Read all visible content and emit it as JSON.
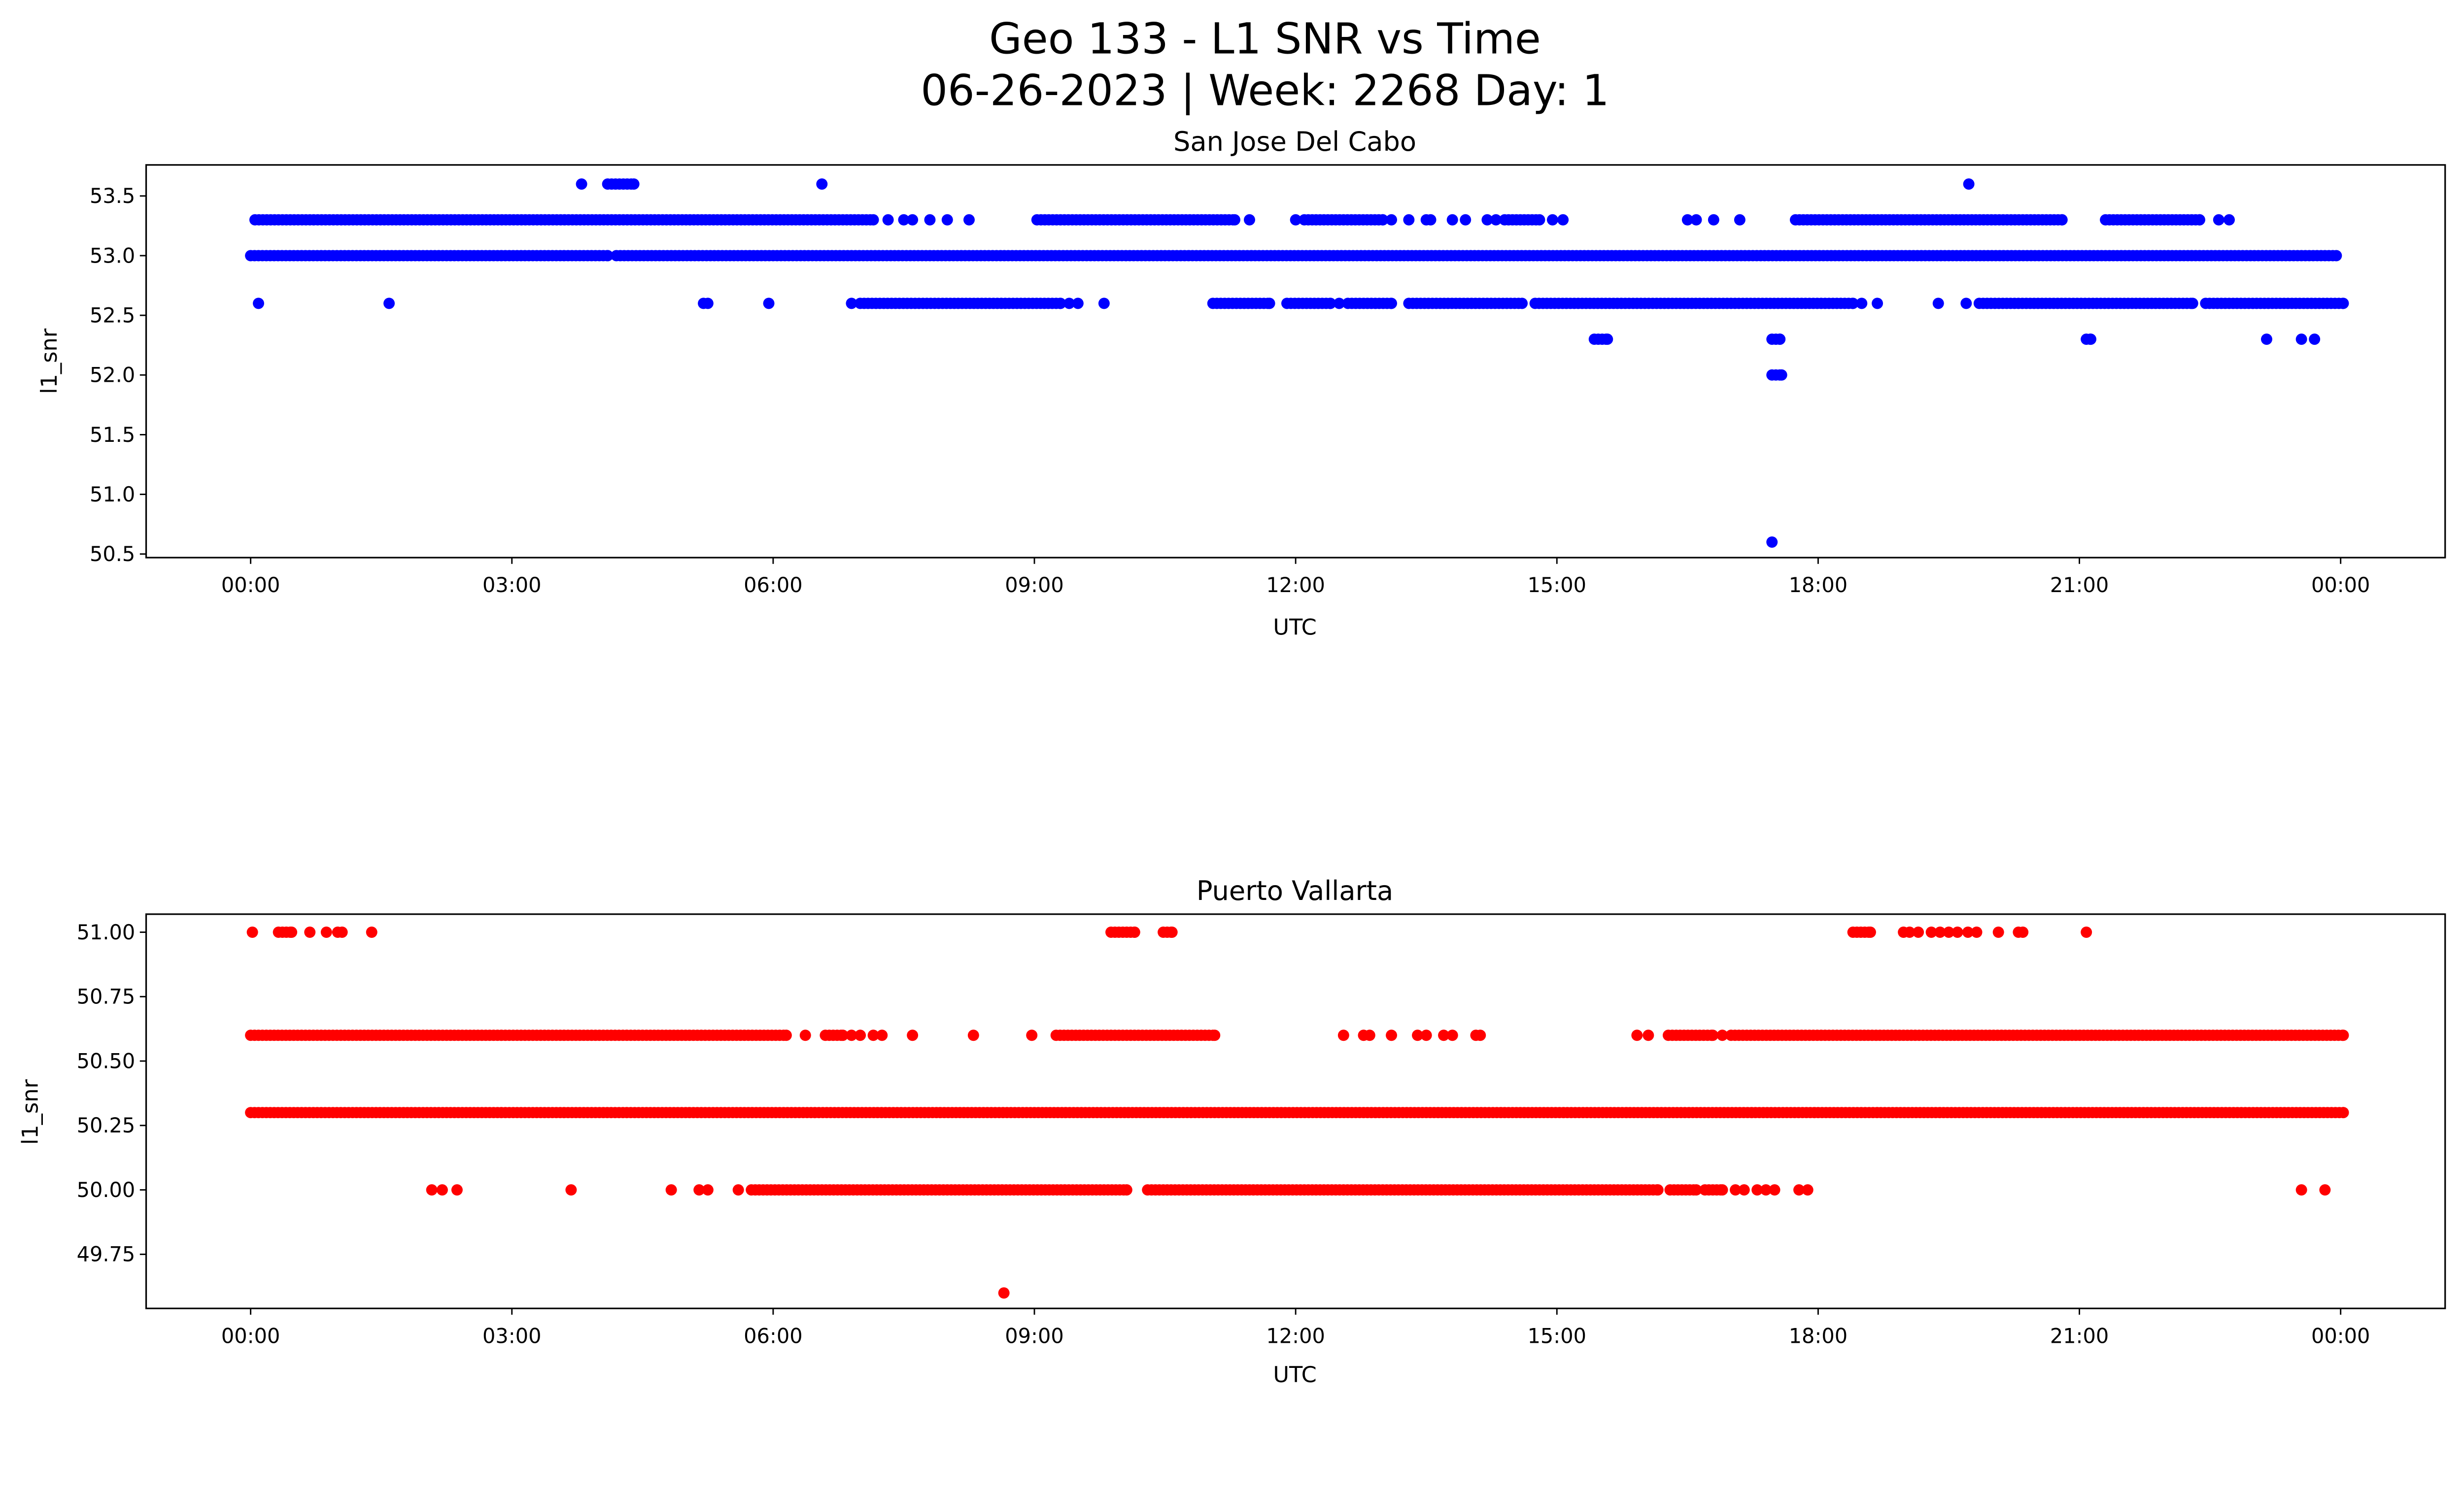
{
  "chart_data": [
    {
      "type": "scatter",
      "suptitle_line1": "Geo 133 - L1 SNR vs Time",
      "suptitle_line2": "06-26-2023 | Week: 2268 Day: 1",
      "title": "San Jose Del Cabo",
      "xlabel": "UTC",
      "ylabel": "l1_snr",
      "xlim_hours": [
        -1.2,
        25.2
      ],
      "ylim": [
        50.47,
        53.76
      ],
      "xticks": [
        {
          "h": 0,
          "label": "00:00"
        },
        {
          "h": 3,
          "label": "03:00"
        },
        {
          "h": 6,
          "label": "06:00"
        },
        {
          "h": 9,
          "label": "09:00"
        },
        {
          "h": 12,
          "label": "12:00"
        },
        {
          "h": 15,
          "label": "15:00"
        },
        {
          "h": 18,
          "label": "18:00"
        },
        {
          "h": 21,
          "label": "21:00"
        },
        {
          "h": 24,
          "label": "00:00"
        }
      ],
      "yticks": [
        {
          "v": 50.5,
          "label": "50.5"
        },
        {
          "v": 51.0,
          "label": "51.0"
        },
        {
          "v": 51.5,
          "label": "51.5"
        },
        {
          "v": 52.0,
          "label": "52.0"
        },
        {
          "v": 52.5,
          "label": "52.5"
        },
        {
          "v": 53.0,
          "label": "53.0"
        },
        {
          "v": 53.5,
          "label": "53.5"
        }
      ],
      "color": "#0000ff",
      "levels": [
        {
          "y": 53.6,
          "ranges": [
            [
              4.1,
              4.4
            ]
          ],
          "points": [
            3.8,
            6.56,
            19.73
          ]
        },
        {
          "y": 53.3,
          "ranges": [
            [
              0.05,
              7.15
            ],
            [
              9.03,
              11.3
            ],
            [
              12.1,
              13.0
            ],
            [
              14.4,
              14.8
            ],
            [
              17.74,
              20.8
            ],
            [
              21.3,
              22.38
            ]
          ],
          "points": [
            7.32,
            7.5,
            7.6,
            7.8,
            8.0,
            8.25,
            11.47,
            12.0,
            13.1,
            13.3,
            13.5,
            13.55,
            13.8,
            13.95,
            14.2,
            14.3,
            14.95,
            15.07,
            16.5,
            16.6,
            16.8,
            17.1,
            22.6,
            22.72
          ]
        },
        {
          "y": 53.0,
          "ranges": [
            [
              0.0,
              4.1
            ],
            [
              4.2,
              23.95
            ]
          ],
          "points": []
        },
        {
          "y": 52.6,
          "ranges": [
            [
              7.0,
              9.3
            ],
            [
              11.05,
              11.7
            ],
            [
              11.9,
              12.4
            ],
            [
              12.6,
              13.1
            ],
            [
              13.3,
              14.6
            ],
            [
              14.75,
              18.4
            ],
            [
              19.85,
              22.3
            ],
            [
              22.45,
              24.03
            ]
          ],
          "points": [
            0.09,
            1.59,
            5.2,
            5.25,
            5.95,
            6.9,
            9.4,
            9.5,
            9.8,
            12.5,
            18.5,
            18.68,
            19.38,
            19.7
          ]
        },
        {
          "y": 52.3,
          "ranges": [
            [
              15.43,
              15.58
            ],
            [
              17.47,
              17.56
            ],
            [
              21.08,
              21.13
            ]
          ],
          "points": [
            23.15,
            23.55,
            23.7
          ]
        },
        {
          "y": 52.0,
          "ranges": [
            [
              17.47,
              17.58
            ]
          ],
          "points": []
        },
        {
          "y": 50.6,
          "ranges": [],
          "points": [
            17.47
          ]
        }
      ]
    },
    {
      "type": "scatter",
      "title": "Puerto Vallarta",
      "xlabel": "UTC",
      "ylabel": "l1_snr",
      "xlim_hours": [
        -1.2,
        25.2
      ],
      "ylim": [
        49.54,
        51.07
      ],
      "xticks": [
        {
          "h": 0,
          "label": "00:00"
        },
        {
          "h": 3,
          "label": "03:00"
        },
        {
          "h": 6,
          "label": "06:00"
        },
        {
          "h": 9,
          "label": "09:00"
        },
        {
          "h": 12,
          "label": "12:00"
        },
        {
          "h": 15,
          "label": "15:00"
        },
        {
          "h": 18,
          "label": "18:00"
        },
        {
          "h": 21,
          "label": "21:00"
        },
        {
          "h": 24,
          "label": "00:00"
        }
      ],
      "yticks": [
        {
          "v": 49.75,
          "label": "49.75"
        },
        {
          "v": 50.0,
          "label": "50.00"
        },
        {
          "v": 50.25,
          "label": "50.25"
        },
        {
          "v": 50.5,
          "label": "50.50"
        },
        {
          "v": 50.75,
          "label": "50.75"
        },
        {
          "v": 51.0,
          "label": "51.00"
        }
      ],
      "color": "#ff0000",
      "levels": [
        {
          "y": 51.0,
          "ranges": [
            [
              0.32,
              0.47
            ],
            [
              9.88,
              10.15
            ],
            [
              10.48,
              10.58
            ],
            [
              18.4,
              18.6
            ]
          ],
          "points": [
            0.02,
            0.68,
            0.87,
            1.0,
            1.05,
            1.39,
            18.98,
            19.05,
            19.15,
            19.3,
            19.4,
            19.5,
            19.6,
            19.72,
            19.82,
            20.07,
            20.3,
            20.35,
            21.08
          ]
        },
        {
          "y": 50.6,
          "ranges": [
            [
              0.0,
              6.15
            ],
            [
              6.6,
              6.8
            ],
            [
              9.25,
              11.07
            ],
            [
              16.28,
              16.79
            ],
            [
              17.0,
              24.03
            ]
          ],
          "points": [
            6.37,
            6.9,
            7.0,
            7.15,
            7.25,
            7.6,
            8.3,
            8.97,
            12.55,
            12.78,
            12.85,
            13.1,
            13.4,
            13.5,
            13.7,
            13.8,
            14.07,
            14.12,
            15.92,
            16.05,
            16.9
          ]
        },
        {
          "y": 50.3,
          "ranges": [
            [
              0.0,
              24.03
            ]
          ],
          "points": []
        },
        {
          "y": 50.0,
          "ranges": [
            [
              5.75,
              10.06
            ],
            [
              10.3,
              16.16
            ],
            [
              16.3,
              16.6
            ],
            [
              16.7,
              16.9
            ]
          ],
          "points": [
            2.08,
            2.2,
            2.37,
            3.68,
            4.83,
            5.15,
            5.25,
            5.6,
            17.05,
            17.15,
            17.3,
            17.4,
            17.5,
            17.78,
            17.88,
            23.55,
            23.82
          ]
        },
        {
          "y": 49.6,
          "ranges": [],
          "points": [
            8.65
          ]
        }
      ]
    }
  ]
}
